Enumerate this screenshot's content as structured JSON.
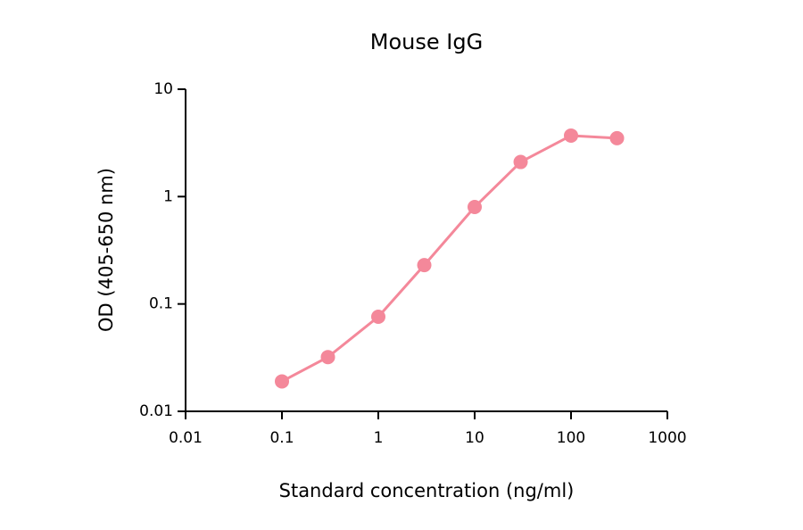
{
  "chart_data": {
    "type": "line",
    "title": "Mouse IgG",
    "x_label": "Standard concentration (ng/ml)",
    "y_label": "OD (405-650 nm)",
    "x": [
      0.1,
      0.3,
      1,
      3,
      10,
      30,
      100,
      300
    ],
    "series": [
      {
        "name": "Mouse IgG",
        "color": "#f4889a",
        "values": [
          0.019,
          0.032,
          0.076,
          0.23,
          0.8,
          2.1,
          3.7,
          3.5
        ]
      }
    ],
    "xscale": "log",
    "yscale": "log",
    "xlim": [
      0.01,
      1000
    ],
    "xticks": [
      0.01,
      0.1,
      1,
      10,
      100,
      1000
    ],
    "ylim": [
      0.01,
      10
    ],
    "yticks": [
      0.01,
      0.1,
      1,
      10
    ],
    "grid": false
  }
}
